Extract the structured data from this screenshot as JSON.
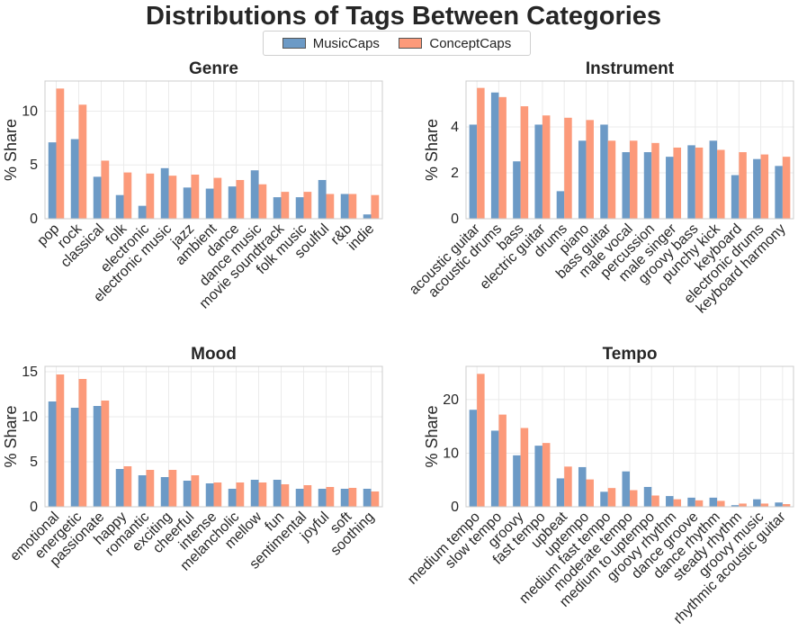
{
  "figure": {
    "title": "Distributions of Tags Between Categories",
    "legend": [
      {
        "name": "MusicCaps",
        "color": "#6c9ac6"
      },
      {
        "name": "ConceptCaps",
        "color": "#fc9a7a"
      }
    ]
  },
  "chart_data": [
    {
      "type": "bar",
      "title": "Genre",
      "ylabel": "% Share",
      "ylim": [
        0,
        12.8
      ],
      "yticks": [
        0,
        5,
        10
      ],
      "categories": [
        "pop",
        "rock",
        "classical",
        "folk",
        "electronic",
        "electronic music",
        "jazz",
        "ambient",
        "dance",
        "dance music",
        "movie soundtrack",
        "folk music",
        "soulful",
        "r&b",
        "indie"
      ],
      "series": [
        {
          "name": "MusicCaps",
          "values": [
            7.1,
            7.4,
            3.9,
            2.2,
            1.2,
            4.7,
            2.9,
            2.8,
            3.0,
            4.5,
            2.0,
            2.0,
            3.6,
            2.3,
            0.4
          ]
        },
        {
          "name": "ConceptCaps",
          "values": [
            12.1,
            10.6,
            5.4,
            4.3,
            4.2,
            4.0,
            4.1,
            3.8,
            3.6,
            3.2,
            2.5,
            2.5,
            2.3,
            2.3,
            2.2
          ]
        }
      ]
    },
    {
      "type": "bar",
      "title": "Instrument",
      "ylabel": "% Share",
      "ylim": [
        0,
        6.0
      ],
      "yticks": [
        0,
        2,
        4
      ],
      "categories": [
        "acoustic guitar",
        "acoustic drums",
        "bass",
        "electric guitar",
        "drums",
        "piano",
        "bass guitar",
        "male vocal",
        "percussion",
        "male singer",
        "groovy bass",
        "punchy kick",
        "keyboard",
        "electronic drums",
        "keyboard harmony"
      ],
      "series": [
        {
          "name": "MusicCaps",
          "values": [
            4.1,
            5.5,
            2.5,
            4.1,
            1.2,
            3.4,
            4.1,
            2.9,
            2.9,
            2.7,
            3.2,
            3.4,
            1.9,
            2.6,
            2.3
          ]
        },
        {
          "name": "ConceptCaps",
          "values": [
            5.7,
            5.3,
            4.9,
            4.5,
            4.4,
            4.3,
            3.4,
            3.4,
            3.3,
            3.1,
            3.1,
            3.0,
            2.9,
            2.8,
            2.7
          ]
        }
      ]
    },
    {
      "type": "bar",
      "title": "Mood",
      "ylabel": "% Share",
      "ylim": [
        0,
        15.6
      ],
      "yticks": [
        0,
        5,
        10,
        15
      ],
      "categories": [
        "emotional",
        "energetic",
        "passionate",
        "happy",
        "romantic",
        "exciting",
        "cheerful",
        "intense",
        "melancholic",
        "mellow",
        "fun",
        "sentimental",
        "joyful",
        "soft",
        "soothing"
      ],
      "series": [
        {
          "name": "MusicCaps",
          "values": [
            11.7,
            11.0,
            11.2,
            4.2,
            3.5,
            3.3,
            2.9,
            2.6,
            2.0,
            3.0,
            3.0,
            2.0,
            2.0,
            2.0,
            2.0
          ]
        },
        {
          "name": "ConceptCaps",
          "values": [
            14.7,
            14.2,
            11.8,
            4.5,
            4.1,
            4.1,
            3.5,
            2.7,
            2.7,
            2.7,
            2.5,
            2.4,
            2.2,
            2.1,
            1.7
          ]
        }
      ]
    },
    {
      "type": "bar",
      "title": "Tempo",
      "ylabel": "% Share",
      "ylim": [
        0,
        26.2
      ],
      "yticks": [
        0,
        10,
        20
      ],
      "categories": [
        "medium tempo",
        "slow tempo",
        "groovy",
        "fast tempo",
        "upbeat",
        "uptempo",
        "medium fast tempo",
        "moderate tempo",
        "medium to uptempo",
        "groovy rhythm",
        "dance groove",
        "dance rhythm",
        "steady rhythm",
        "groovy music",
        "rhythmic acoustic guitar"
      ],
      "series": [
        {
          "name": "MusicCaps",
          "values": [
            18.1,
            14.2,
            9.6,
            11.4,
            5.3,
            7.4,
            2.8,
            6.6,
            3.7,
            2.0,
            1.7,
            1.7,
            0.3,
            1.4,
            0.8
          ]
        },
        {
          "name": "ConceptCaps",
          "values": [
            24.8,
            17.2,
            14.7,
            11.9,
            7.5,
            5.1,
            3.5,
            3.1,
            2.1,
            1.4,
            1.2,
            1.1,
            0.6,
            0.6,
            0.5
          ]
        }
      ]
    }
  ]
}
